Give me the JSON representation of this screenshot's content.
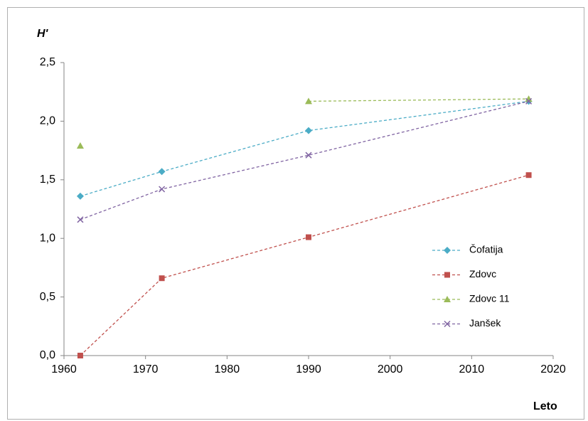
{
  "chart_data": {
    "type": "line",
    "ylabel": "H'",
    "xlabel": "Leto",
    "x": [
      1962,
      1972,
      1990,
      2017
    ],
    "series": [
      {
        "name": "Čofatija",
        "color": "#4bacc6",
        "marker": "diamond",
        "values": [
          1.36,
          1.57,
          1.92,
          2.17
        ]
      },
      {
        "name": "Zdovc",
        "color": "#c0504d",
        "marker": "square",
        "values": [
          0.0,
          0.66,
          1.01,
          1.54
        ]
      },
      {
        "name": "Zdovc 11",
        "color": "#9bbb59",
        "marker": "triangle",
        "values": [
          1.79,
          null,
          2.17,
          2.19
        ]
      },
      {
        "name": "Janšek",
        "color": "#8064a2",
        "marker": "x",
        "values": [
          1.16,
          1.42,
          1.71,
          2.17
        ]
      }
    ],
    "xlim": [
      1960,
      2020
    ],
    "xticks": [
      1960,
      1970,
      1980,
      1990,
      2000,
      2010,
      2020
    ],
    "ylim": [
      0,
      2.5
    ],
    "yticks": [
      {
        "value": 0,
        "label": "0,0"
      },
      {
        "value": 0.5,
        "label": "0,5"
      },
      {
        "value": 1,
        "label": "1,0"
      },
      {
        "value": 1.5,
        "label": "1,5"
      },
      {
        "value": 2,
        "label": "2,0"
      },
      {
        "value": 2.5,
        "label": "2,5"
      }
    ],
    "grid": false,
    "legend": "right"
  }
}
